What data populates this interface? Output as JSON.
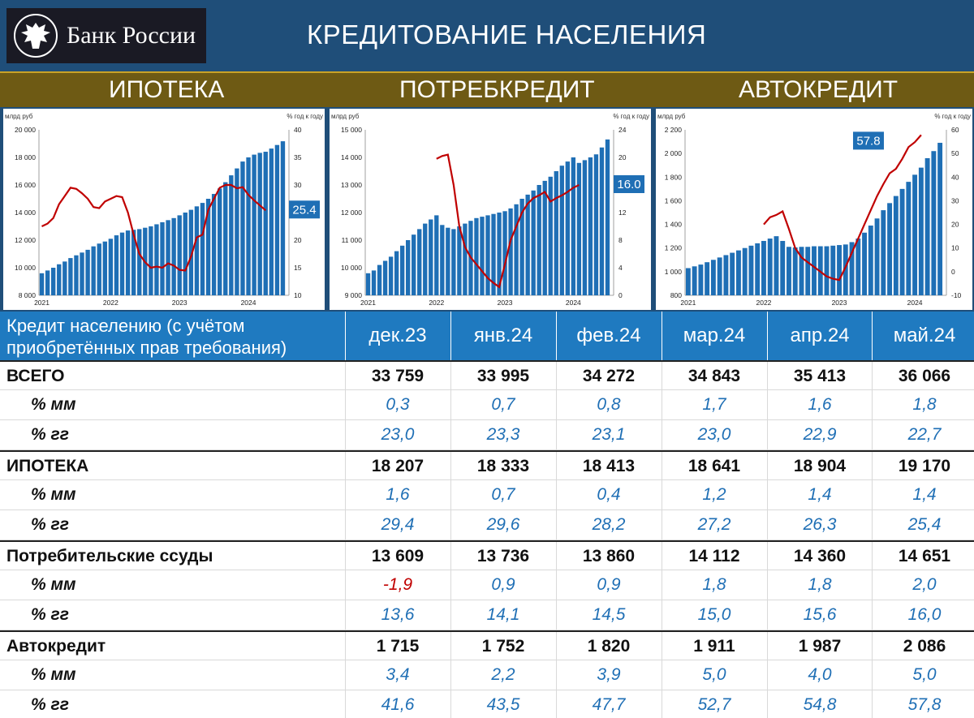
{
  "header": {
    "logo_text": "Банк России",
    "title": "КРЕДИТОВАНИЕ НАСЕЛЕНИЯ"
  },
  "sections": [
    "ИПОТЕКА",
    "ПОТРЕБКРЕДИТ",
    "АВТОКРЕДИТ"
  ],
  "colors": {
    "bar": "#1f6fb5",
    "line": "#c00000",
    "header": "#1f4e79",
    "section": "#6e5a14",
    "table_head": "#1f7ac0"
  },
  "chart_data": [
    {
      "type": "bar",
      "name": "ИПОТЕКА",
      "y_unit": "млрд руб",
      "y2_unit": "% год к году",
      "ylim": [
        8000,
        20000
      ],
      "y_ticks": [
        "8 000",
        "10 000",
        "12 000",
        "14 000",
        "16 000",
        "18 000",
        "20 000"
      ],
      "y2lim": [
        10,
        40
      ],
      "y2_ticks": [
        "10",
        "15",
        "20",
        "25",
        "30",
        "35",
        "40"
      ],
      "x_ticks": [
        "2021",
        "2022",
        "2023",
        "2024"
      ],
      "callout": "25.4",
      "values": [
        9600,
        9800,
        10000,
        10250,
        10450,
        10700,
        10900,
        11100,
        11300,
        11550,
        11750,
        11900,
        12100,
        12350,
        12550,
        12700,
        12750,
        12800,
        12900,
        13000,
        13150,
        13300,
        13450,
        13600,
        13800,
        14000,
        14200,
        14450,
        14700,
        15000,
        15350,
        15750,
        16200,
        16700,
        17200,
        17700,
        18000,
        18200,
        18330,
        18410,
        18640,
        18900,
        19170
      ],
      "line": [
        22.5,
        23,
        24,
        26.5,
        28,
        29.5,
        29.3,
        28.5,
        27.5,
        26,
        25.8,
        27,
        27.5,
        28,
        27.8,
        25,
        21,
        17.5,
        16,
        15,
        15.2,
        15,
        15.8,
        15.4,
        14.6,
        14.5,
        17,
        20.5,
        21,
        25.5,
        27.5,
        29.5,
        30,
        30,
        29.4,
        29.6,
        28.2,
        27.2,
        26.3,
        25.4
      ]
    },
    {
      "type": "bar",
      "name": "ПОТРЕБКРЕДИТ",
      "y_unit": "млрд руб",
      "y2_unit": "% год к году",
      "ylim": [
        9000,
        15000
      ],
      "y_ticks": [
        "9 000",
        "10 000",
        "11 000",
        "12 000",
        "13 000",
        "14 000",
        "15 000"
      ],
      "y2lim": [
        0,
        24
      ],
      "y2_ticks": [
        "0",
        "4",
        "8",
        "12",
        "16",
        "20",
        "24"
      ],
      "x_ticks": [
        "2021",
        "2022",
        "2023",
        "2024"
      ],
      "callout": "16.0",
      "values": [
        9800,
        9900,
        10100,
        10250,
        10400,
        10600,
        10800,
        11000,
        11200,
        11400,
        11600,
        11750,
        11900,
        11550,
        11450,
        11400,
        11500,
        11600,
        11700,
        11800,
        11850,
        11900,
        11950,
        12000,
        12050,
        12150,
        12300,
        12500,
        12650,
        12800,
        13000,
        13150,
        13300,
        13500,
        13700,
        13850,
        14000,
        13800,
        13900,
        14000,
        14110,
        14360,
        14650
      ],
      "line": [
        null,
        null,
        null,
        null,
        null,
        null,
        null,
        null,
        null,
        null,
        null,
        null,
        19.8,
        20.2,
        20.4,
        16,
        10,
        7,
        5.5,
        4.5,
        3.5,
        2.5,
        1.8,
        1.2,
        4.5,
        8,
        10,
        12,
        13.3,
        14.1,
        14.5,
        15,
        13.6,
        14.1,
        14.5,
        15,
        15.6,
        16
      ]
    },
    {
      "type": "bar",
      "name": "АВТОКРЕДИТ",
      "y_unit": "млрд руб",
      "y2_unit": "% год к году",
      "ylim": [
        800,
        2200
      ],
      "y_ticks": [
        "800",
        "1 000",
        "1 200",
        "1 400",
        "1 600",
        "1 800",
        "2 000",
        "2 200"
      ],
      "y2lim": [
        -10,
        60
      ],
      "y2_ticks": [
        "-10",
        "0",
        "10",
        "20",
        "30",
        "40",
        "50",
        "60"
      ],
      "x_ticks": [
        "2021",
        "2022",
        "2023",
        "2024"
      ],
      "callout": "57.8",
      "values": [
        1030,
        1045,
        1060,
        1080,
        1100,
        1120,
        1140,
        1160,
        1180,
        1200,
        1220,
        1240,
        1260,
        1280,
        1300,
        1260,
        1210,
        1205,
        1210,
        1210,
        1215,
        1215,
        1215,
        1220,
        1225,
        1230,
        1250,
        1280,
        1330,
        1390,
        1450,
        1520,
        1580,
        1640,
        1700,
        1760,
        1820,
        1880,
        1960,
        2020,
        2090
      ],
      "line": [
        null,
        null,
        null,
        null,
        null,
        null,
        null,
        null,
        null,
        null,
        null,
        null,
        20,
        23,
        24,
        25.5,
        18,
        10,
        6,
        4,
        2,
        0,
        -2,
        -3,
        -3.5,
        2,
        8,
        14,
        20,
        26,
        32,
        37,
        41.6,
        43.5,
        47.7,
        52.7,
        54.8,
        57.8
      ]
    }
  ],
  "table": {
    "title_line1": "Кредит населению (с учётом",
    "title_line2": "приобретённых прав требования)",
    "columns": [
      "дек.23",
      "янв.24",
      "фев.24",
      "мар.24",
      "апр.24",
      "май.24"
    ],
    "groups": [
      {
        "label": "ВСЕГО",
        "values": [
          "33 759",
          "33 995",
          "34 272",
          "34 843",
          "35 413",
          "36 066"
        ],
        "mm_label": "% мм",
        "mm": [
          "0,3",
          "0,7",
          "0,8",
          "1,7",
          "1,6",
          "1,8"
        ],
        "yy_label": "% гг",
        "yy": [
          "23,0",
          "23,3",
          "23,1",
          "23,0",
          "22,9",
          "22,7"
        ]
      },
      {
        "label": "ИПОТЕКА",
        "values": [
          "18 207",
          "18 333",
          "18 413",
          "18 641",
          "18 904",
          "19 170"
        ],
        "mm_label": "% мм",
        "mm": [
          "1,6",
          "0,7",
          "0,4",
          "1,2",
          "1,4",
          "1,4"
        ],
        "yy_label": "% гг",
        "yy": [
          "29,4",
          "29,6",
          "28,2",
          "27,2",
          "26,3",
          "25,4"
        ]
      },
      {
        "label": "Потребительские ссуды",
        "values": [
          "13 609",
          "13 736",
          "13 860",
          "14 112",
          "14 360",
          "14 651"
        ],
        "mm_label": "% мм",
        "mm": [
          "-1,9",
          "0,9",
          "0,9",
          "1,8",
          "1,8",
          "2,0"
        ],
        "yy_label": "% гг",
        "yy": [
          "13,6",
          "14,1",
          "14,5",
          "15,0",
          "15,6",
          "16,0"
        ]
      },
      {
        "label": "Автокредит",
        "values": [
          "1 715",
          "1 752",
          "1 820",
          "1 911",
          "1 987",
          "2 086"
        ],
        "mm_label": "% мм",
        "mm": [
          "3,4",
          "2,2",
          "3,9",
          "5,0",
          "4,0",
          "5,0"
        ],
        "yy_label": "% гг",
        "yy": [
          "41,6",
          "43,5",
          "47,7",
          "52,7",
          "54,8",
          "57,8"
        ]
      }
    ]
  }
}
